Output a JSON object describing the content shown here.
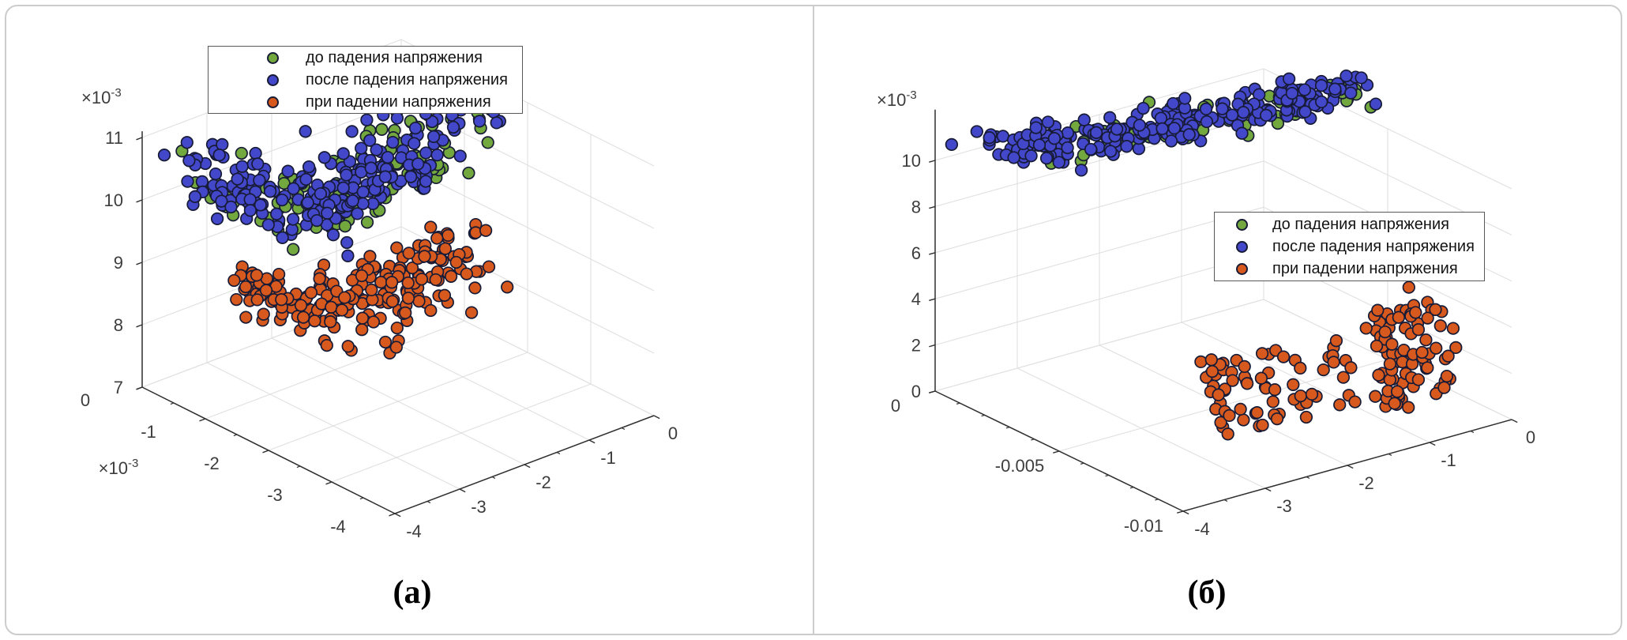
{
  "figure": {
    "background": "#ffffff",
    "border_color": "#cccccc",
    "divider_color": "#cccccc"
  },
  "colors": {
    "green": "#73a83f",
    "blue": "#4347c9",
    "orange": "#d8591d",
    "marker_edge": "#171b36",
    "grid": "#e0e0e0",
    "axis": "#2f2f2f",
    "tick_text": "#3d3d3d"
  },
  "chart_data": [
    {
      "id": "a",
      "type": "scatter",
      "subtype": "scatter3d",
      "caption": "(а)",
      "legend_position": "top-left-inside",
      "grid": true,
      "axes": {
        "z": {
          "ticks": [
            7,
            8,
            9,
            10,
            11
          ],
          "range": [
            7,
            11
          ],
          "scale_base": "×10",
          "scale_exp": "-3"
        },
        "y": {
          "ticks": [
            0,
            -1,
            -2,
            -3,
            -4
          ],
          "range": [
            -4,
            0
          ],
          "scale_base": "×10",
          "scale_exp": "-3"
        },
        "x": {
          "ticks": [
            -4,
            -3,
            -2,
            -1,
            0
          ],
          "range": [
            -4,
            0
          ]
        }
      },
      "series": [
        {
          "label": "до падения напряжения",
          "color": "green",
          "marker": "circle",
          "approx_count": 115,
          "clusters": [
            {
              "n": 115,
              "x0": -3.62,
              "x1": -0.2,
              "xn": 0.1,
              "y0": -0.5,
              "y1": -1.2,
              "yn": 0.27,
              "z0": 9.48,
              "zq": 4.2,
              "zl": 0.3,
              "zn": 0.3,
              "zlo": 8.85,
              "zhi": 10.95
            }
          ]
        },
        {
          "label": "после падения напряжения",
          "color": "blue",
          "marker": "circle",
          "approx_count": 240,
          "clusters": [
            {
              "n": 240,
              "x0": -3.62,
              "x1": -0.2,
              "xn": 0.1,
              "y0": -0.5,
              "y1": -1.2,
              "yn": 0.27,
              "z0": 9.6,
              "zq": 4.2,
              "zl": 0.3,
              "zn": 0.3,
              "zlo": 8.9,
              "zhi": 11.05
            }
          ]
        },
        {
          "label": "при падении напряжения",
          "color": "orange",
          "marker": "circle",
          "approx_count": 213,
          "clusters": [
            {
              "n": 208,
              "x0": -2.75,
              "x1": -0.2,
              "xn": 0.12,
              "y0": -0.35,
              "y1": -1.2,
              "yn": 0.3,
              "z0": 7.72,
              "zq": 2.2,
              "zl": 0.18,
              "zn": 0.21,
              "zlo": 7.15,
              "zhi": 8.7
            },
            {
              "n": 5,
              "x0": -1.75,
              "x1": -1.35,
              "xn": 0.06,
              "y0": -1.0,
              "y1": -1.2,
              "yn": 0.08,
              "z0": 7.1,
              "zq": 0,
              "zl": 0.12,
              "zn": 0.05,
              "zlo": 7.0,
              "zhi": 7.3
            }
          ]
        }
      ]
    },
    {
      "id": "b",
      "type": "scatter",
      "subtype": "scatter3d",
      "caption": "(б)",
      "legend_position": "middle-right-inside",
      "grid": true,
      "axes": {
        "z": {
          "ticks": [
            0,
            2,
            4,
            6,
            8,
            10
          ],
          "range": [
            0,
            10
          ],
          "scale_base": "×10",
          "scale_exp": "-3"
        },
        "y": {
          "ticks": [
            0,
            -0.005,
            -0.01
          ],
          "range": [
            -0.01,
            0
          ]
        },
        "x": {
          "ticks": [
            -4,
            -3,
            -2,
            -1,
            0
          ],
          "range": [
            -4,
            0
          ]
        }
      },
      "series": [
        {
          "label": "до падения напряжения",
          "color": "green",
          "marker": "circle",
          "approx_count": 72,
          "clusters": [
            {
              "n": 72,
              "t0": 0.1,
              "t1": 1,
              "x0": -3.55,
              "x1": 0.0,
              "xn": 0.09,
              "y0": -0.0012,
              "y1": -0.004,
              "yn": 0.00045,
              "ynTaper": true,
              "z0": 10.2,
              "zq": 0.5,
              "zl": 1.0,
              "zn": 0.3,
              "zlo": 9.3,
              "zhi": 11.6
            }
          ]
        },
        {
          "label": "после падения напряжения",
          "color": "blue",
          "marker": "circle",
          "approx_count": 256,
          "clusters": [
            {
              "n": 255,
              "x0": -3.55,
              "x1": 0.0,
              "xn": 0.09,
              "y0": -0.0012,
              "y1": -0.004,
              "yn": 0.00045,
              "ynTaper": true,
              "z0": 10.3,
              "zq": 0.5,
              "zl": 1.0,
              "zn": 0.32,
              "zlo": 9.4,
              "zhi": 11.8
            },
            {
              "n": 1,
              "x0": -3.95,
              "x1": -3.95,
              "xn": 0,
              "y0": -0.0005,
              "y1": -0.0005,
              "yn": 0,
              "z0": 10.9,
              "zq": 0,
              "zl": 0,
              "zn": 0,
              "zlo": 10.9,
              "zhi": 10.9
            }
          ]
        },
        {
          "label": "при падении напряжения",
          "color": "orange",
          "marker": "circle",
          "approx_count": 152,
          "clusters": [
            {
              "mode": "columns",
              "cols": 5,
              "pmin": 9,
              "pmax": 14,
              "x0": -2.65,
              "x1": -1.8,
              "y0": -0.0063,
              "y1": -0.0068,
              "yjit": 0.0004,
              "zlo": 0.35,
              "zhi0": 2.9,
              "zhi1": 3.2,
              "ydrop": 0.0006,
              "xjit": 0.045
            },
            {
              "mode": "columns",
              "cols": 8,
              "pmin": 9,
              "pmax": 14,
              "x0": -1.1,
              "x1": -0.05,
              "y0": -0.0069,
              "y1": -0.0075,
              "yjit": 0.0004,
              "zlo": 0.35,
              "zhi0": 3.3,
              "zhi1": 4.4,
              "ydrop": 0.0006,
              "xjit": 0.045
            },
            {
              "n": 3,
              "x0": -0.75,
              "x1": -0.45,
              "xn": 0.05,
              "y0": -0.0078,
              "y1": -0.008,
              "yn": 0.0002,
              "z0": 0.3,
              "zq": 0,
              "zl": 0,
              "zn": 0.15,
              "zlo": 0.05,
              "zhi": 0.6
            }
          ]
        }
      ]
    }
  ]
}
